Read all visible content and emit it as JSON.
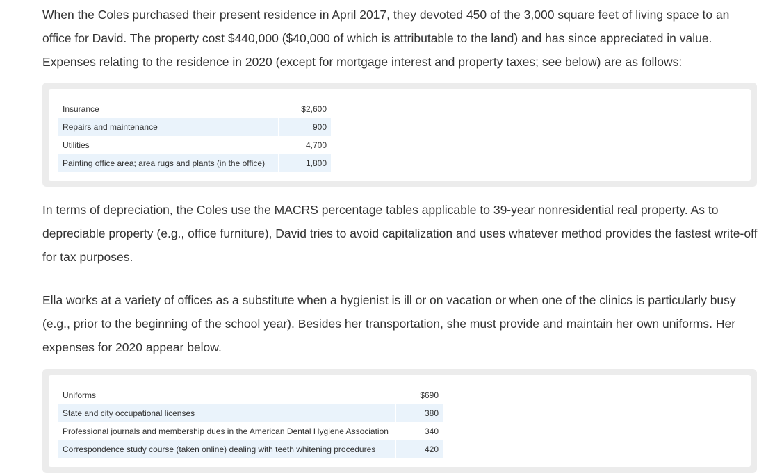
{
  "paragraphs": {
    "p1": "When the Coles purchased their present residence in April 2017, they devoted 450 of the 3,000 square feet of living space to an office for David. The property cost $440,000 ($40,000 of which is attributable to the land) and has since appreciated in value. Expenses relating to the residence in 2020 (except for mortgage interest and property taxes; see below) are as follows:",
    "p2": "In terms of depreciation, the Coles use the MACRS percentage tables applicable to 39-year nonresidential real property. As to depreciable property (e.g., office furniture), David tries to avoid capitalization and uses whatever method provides the fastest write-off for tax purposes.",
    "p3": "Ella works at a variety of offices as a substitute when a hygienist is ill or on vacation or when one of the clinics is particularly busy (e.g., prior to the beginning of the school year). Besides her transportation, she must provide and maintain her own uniforms. Her expenses for 2020 appear below."
  },
  "residence_expenses": {
    "rows": [
      {
        "label": "Insurance",
        "amount": "$2,600"
      },
      {
        "label": "Repairs and maintenance",
        "amount": "900"
      },
      {
        "label": "Utilities",
        "amount": "4,700"
      },
      {
        "label": "Painting office area; area rugs and plants (in the office)",
        "amount": "1,800"
      }
    ]
  },
  "ella_expenses": {
    "rows": [
      {
        "label": "Uniforms",
        "amount": "$690"
      },
      {
        "label": "State and city occupational licenses",
        "amount": "380"
      },
      {
        "label": "Professional journals and membership dues in the American Dental Hygiene Association",
        "amount": "340"
      },
      {
        "label": "Correspondence study course (taken online) dealing with teeth whitening procedures",
        "amount": "420"
      }
    ]
  },
  "colors": {
    "text": "#333333",
    "box_border": "#ececec",
    "row_shade": "#eaf3fb"
  }
}
